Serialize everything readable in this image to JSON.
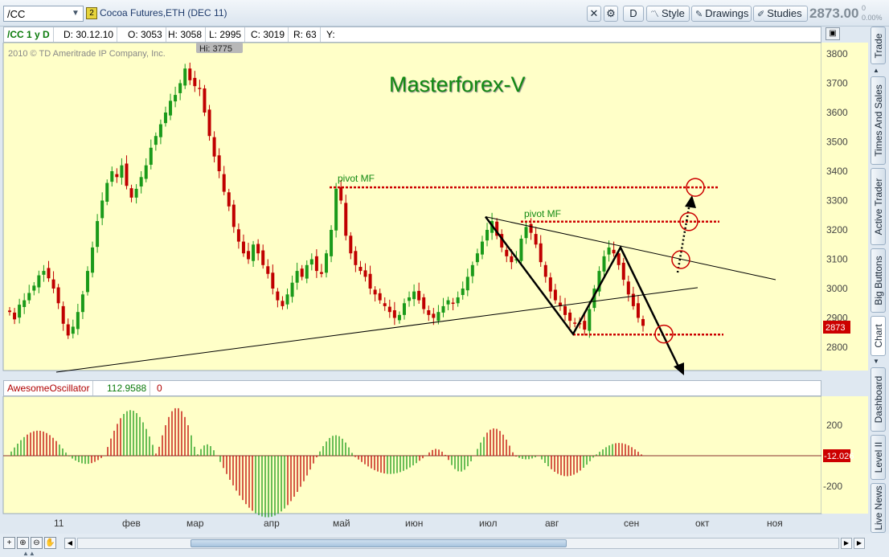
{
  "toolbar": {
    "symbol": "/CC",
    "link_badge": "2",
    "instrument": "Cocoa Futures,ETH (DEC 11)",
    "period_button": "D",
    "style_button": "Style",
    "drawings_button": "Drawings",
    "studies_button": "Studies",
    "last_price": "2873.00",
    "change_top": "0",
    "change_bottom": "0.00%"
  },
  "infobar": {
    "symbol_period": "/CC 1 y D",
    "date": "D: 30.12.10",
    "open": "O: 3053",
    "high": "H: 3058",
    "low": "L: 2995",
    "close": "C: 3019",
    "range": "R: 63",
    "y": "Y:"
  },
  "chart": {
    "copyright": "2010 © TD Ameritrade IP Company, Inc.",
    "watermark": "Masterforex-V",
    "hi_label": "Hi: 3775",
    "pivot_label_1": "pivot MF",
    "pivot_label_2": "pivot MF",
    "price_tag": "2873"
  },
  "oscillator": {
    "name": "AwesomeOscillator",
    "value": "112.9588",
    "extra": "0",
    "current_tag": "-12.026"
  },
  "side_tabs": [
    "Trade",
    "Times And Sales",
    "Active Trader",
    "Big Buttons",
    "Chart",
    "Dashboard",
    "Level II",
    "Live News"
  ],
  "colors": {
    "chart_bg": "#ffffc8",
    "bull": "#1a9a1a",
    "bear": "#c00000",
    "pivot": "#cc0000",
    "watermark": "#138a13",
    "tag_bg": "#cc0000"
  },
  "chart_data": [
    {
      "type": "candlestick",
      "title": "Cocoa Futures,ETH (DEC 11)",
      "ylim": [
        2700,
        3850
      ],
      "yticks": [
        2800,
        2900,
        3000,
        3100,
        3200,
        3300,
        3400,
        3500,
        3600,
        3700,
        3800
      ],
      "xticks": [
        "11",
        "фев",
        "мар",
        "апр",
        "май",
        "июн",
        "июл",
        "авг",
        "сен",
        "окт",
        "ноя"
      ],
      "high_annotation": 3775,
      "last": 2873,
      "closes": [
        2920,
        2895,
        2945,
        2960,
        2985,
        3010,
        3045,
        3060,
        3035,
        3000,
        2950,
        2880,
        2840,
        2870,
        2920,
        2980,
        3060,
        3140,
        3230,
        3300,
        3360,
        3400,
        3380,
        3420,
        3350,
        3310,
        3340,
        3380,
        3420,
        3480,
        3520,
        3560,
        3600,
        3640,
        3660,
        3700,
        3750,
        3710,
        3690,
        3680,
        3600,
        3520,
        3450,
        3400,
        3330,
        3280,
        3210,
        3160,
        3120,
        3100,
        3150,
        3120,
        3080,
        3050,
        3000,
        2960,
        2940,
        2980,
        3020,
        3060,
        3040,
        3080,
        3100,
        3060,
        3050,
        3120,
        3200,
        3340,
        3300,
        3180,
        3120,
        3080,
        3060,
        3040,
        3000,
        2980,
        2960,
        2940,
        2920,
        2900,
        2910,
        2950,
        2970,
        2990,
        2960,
        2930,
        2910,
        2900,
        2920,
        2940,
        2960,
        2950,
        2970,
        3000,
        3040,
        3080,
        3120,
        3160,
        3200,
        3230,
        3180,
        3140,
        3110,
        3090,
        3100,
        3170,
        3210,
        3190,
        3150,
        3090,
        3040,
        2990,
        2960,
        2940,
        2910,
        2890,
        2880,
        2880,
        2860,
        2930,
        3000,
        3060,
        3110,
        3140,
        3120,
        3080,
        3030,
        2980,
        2940,
        2900,
        2873
      ],
      "trendline_1": {
        "from": [
          "11",
          2740
        ],
        "to": [
          "сен",
          3010
        ]
      },
      "trendline_2": {
        "from": [
          "июл",
          3245
        ],
        "to": [
          "окт",
          3030
        ]
      },
      "pivot_levels": [
        3345,
        3228,
        2843
      ],
      "zigzag": [
        3245,
        2845,
        3140,
        2720
      ]
    },
    {
      "type": "bar",
      "title": "AwesomeOscillator",
      "ylim": [
        -300,
        300
      ],
      "yticks": [
        200,
        -200
      ],
      "current": -12.026
    }
  ]
}
